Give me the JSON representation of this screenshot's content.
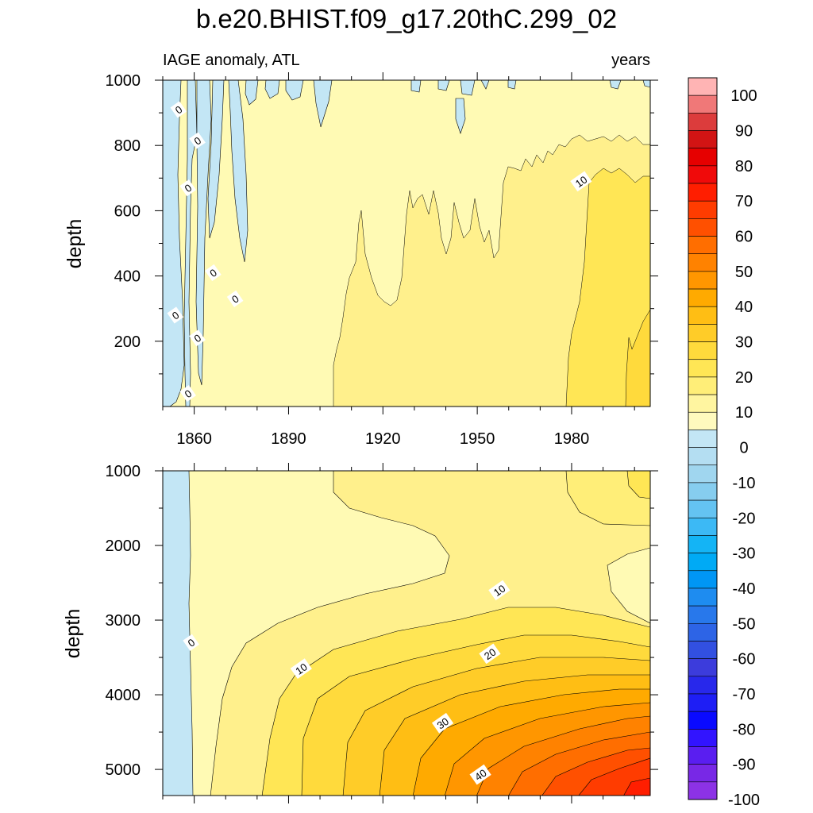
{
  "title": "b.e20.BHIST.f09_g17.20thC.299_02",
  "subtitle_left": "IAGE anomaly, ATL",
  "subtitle_right": "years",
  "chart_data": [
    {
      "type": "heatmap",
      "panel": "upper",
      "xlabel": "",
      "ylabel": "depth",
      "xlim": [
        1850,
        2005
      ],
      "ylim": [
        1000,
        0
      ],
      "xticks": [
        1860,
        1890,
        1920,
        1950,
        1980
      ],
      "yticks": [
        200,
        400,
        600,
        800,
        1000
      ],
      "contour_labels": [
        {
          "text": "0",
          "x": 1858,
          "y": 40
        },
        {
          "text": "0",
          "x": 1861,
          "y": 210
        },
        {
          "text": "0",
          "x": 1854,
          "y": 280
        },
        {
          "text": "0",
          "x": 1873,
          "y": 330
        },
        {
          "text": "0",
          "x": 1866,
          "y": 410
        },
        {
          "text": "0",
          "x": 1858,
          "y": 670
        },
        {
          "text": "0",
          "x": 1861,
          "y": 815
        },
        {
          "text": "0",
          "x": 1855,
          "y": 910
        },
        {
          "text": "10",
          "x": 1983,
          "y": 690
        }
      ]
    },
    {
      "type": "heatmap",
      "panel": "lower",
      "xlabel": "",
      "ylabel": "depth",
      "xlim": [
        1850,
        2005
      ],
      "ylim": [
        1000,
        5350
      ],
      "xticks": [
        1860,
        1890,
        1920,
        1950,
        1980
      ],
      "yticks": [
        1000,
        2000,
        3000,
        4000,
        5000
      ],
      "contour_labels": [
        {
          "text": "10",
          "x": 1957,
          "y": 2600
        },
        {
          "text": "0",
          "x": 1859,
          "y": 3300
        },
        {
          "text": "10",
          "x": 1894,
          "y": 3650
        },
        {
          "text": "20",
          "x": 1954,
          "y": 3450
        },
        {
          "text": "30",
          "x": 1939,
          "y": 4380
        },
        {
          "text": "40",
          "x": 1951,
          "y": 5070
        }
      ]
    }
  ],
  "colorbar": {
    "labels": [
      "100",
      "90",
      "80",
      "70",
      "60",
      "50",
      "40",
      "30",
      "20",
      "10",
      "0",
      "-10",
      "-20",
      "-30",
      "-40",
      "-50",
      "-60",
      "-70",
      "-80",
      "-90",
      "-100"
    ],
    "colors": [
      "#ffb4b4",
      "#f07878",
      "#dc3c3c",
      "#d21414",
      "#e60000",
      "#f00a0a",
      "#ff1e00",
      "#ff3c00",
      "#ff5000",
      "#ff6e00",
      "#ff8200",
      "#ff9600",
      "#ffaa00",
      "#ffbe14",
      "#ffcc28",
      "#ffda3c",
      "#ffe655",
      "#ffee78",
      "#fff5a0",
      "#fffabe",
      "#c3e6f5",
      "#b4def2",
      "#a0d6ef",
      "#86cdef",
      "#64c3f2",
      "#3cb9f5",
      "#14b4f5",
      "#00aaf5",
      "#0096f5",
      "#1e8cf0",
      "#2878eb",
      "#2d64e6",
      "#3250e1",
      "#3c3cdc",
      "#2828eb",
      "#1e1ef5",
      "#0a0aff",
      "#3214ff",
      "#5a1ef0",
      "#7828e6",
      "#8c32e6"
    ]
  },
  "colors": {
    "negative_region": "#c3e6f5",
    "zero_to_five": "#fffab4",
    "five_to_ten": "#fff08c"
  }
}
